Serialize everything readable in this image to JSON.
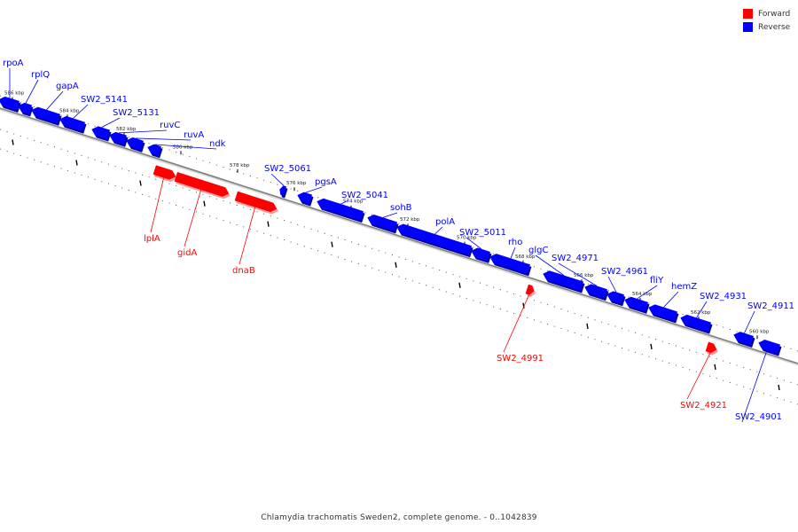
{
  "colors": {
    "forward": "#ff0000",
    "reverse": "#0000ff",
    "backbone": "#808080"
  },
  "legend": {
    "forward_label": "Forward",
    "reverse_label": "Reverse"
  },
  "caption": "Chlamydia trachomatis Sweden2, complete genome. - 0..1042839",
  "scale_ticks": [
    "586 kbp",
    "584 kbp",
    "582 kbp",
    "580 kbp",
    "578 kbp",
    "576 kbp",
    "574 kbp",
    "572 kbp",
    "570 kbp",
    "568 kbp",
    "566 kbp",
    "564 kbp",
    "562 kbp",
    "560 kbp"
  ],
  "genes": [
    {
      "name": "rpoA",
      "strand": "reverse"
    },
    {
      "name": "rplQ",
      "strand": "reverse"
    },
    {
      "name": "gapA",
      "strand": "reverse"
    },
    {
      "name": "SW2_5141",
      "strand": "reverse"
    },
    {
      "name": "SW2_5131",
      "strand": "reverse"
    },
    {
      "name": "ruvC",
      "strand": "reverse"
    },
    {
      "name": "ruvA",
      "strand": "reverse"
    },
    {
      "name": "ndk",
      "strand": "reverse"
    },
    {
      "name": "lplA",
      "strand": "forward"
    },
    {
      "name": "gidA",
      "strand": "forward"
    },
    {
      "name": "dnaB",
      "strand": "forward"
    },
    {
      "name": "SW2_5061",
      "strand": "reverse"
    },
    {
      "name": "pgsA",
      "strand": "reverse"
    },
    {
      "name": "SW2_5041",
      "strand": "reverse"
    },
    {
      "name": "sohB",
      "strand": "reverse"
    },
    {
      "name": "polA",
      "strand": "reverse"
    },
    {
      "name": "SW2_5011",
      "strand": "reverse"
    },
    {
      "name": "rho",
      "strand": "reverse"
    },
    {
      "name": "SW2_4991",
      "strand": "forward"
    },
    {
      "name": "glgC",
      "strand": "reverse"
    },
    {
      "name": "SW2_4971",
      "strand": "reverse"
    },
    {
      "name": "SW2_4961",
      "strand": "reverse"
    },
    {
      "name": "fliY",
      "strand": "reverse"
    },
    {
      "name": "hemZ",
      "strand": "reverse"
    },
    {
      "name": "SW2_4931",
      "strand": "reverse"
    },
    {
      "name": "SW2_4921",
      "strand": "forward"
    },
    {
      "name": "SW2_4911",
      "strand": "reverse"
    },
    {
      "name": "SW2_4901",
      "strand": "reverse"
    }
  ]
}
